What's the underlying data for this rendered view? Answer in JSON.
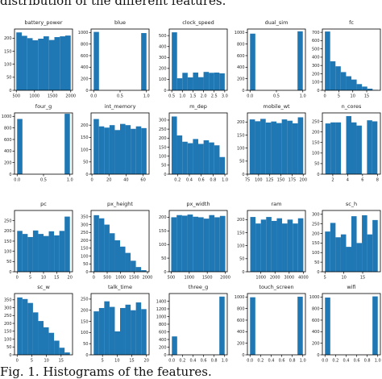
{
  "captions": {
    "top": "distribution of the different features.",
    "bottom": "Fig. 1.   Histograms of the features."
  },
  "colors": {
    "bar": "#1f77b4",
    "axis": "#000000",
    "text": "#222222"
  },
  "chart_data": [
    {
      "type": "bar",
      "title": "battery_power",
      "xticks": [
        500,
        1000,
        1500,
        2000
      ],
      "yticks": [
        0,
        50,
        100,
        150,
        200
      ],
      "xlim": [
        450,
        2050
      ],
      "ylim": [
        0,
        235
      ],
      "bins": [
        [
          500,
          650,
          222
        ],
        [
          650,
          800,
          209
        ],
        [
          800,
          950,
          200
        ],
        [
          950,
          1100,
          192
        ],
        [
          1100,
          1250,
          198
        ],
        [
          1250,
          1400,
          207
        ],
        [
          1400,
          1550,
          193
        ],
        [
          1550,
          1700,
          204
        ],
        [
          1700,
          1850,
          207
        ],
        [
          1850,
          2000,
          210
        ]
      ]
    },
    {
      "type": "bar",
      "title": "blue",
      "xticks": [
        0.0,
        0.5,
        1.0
      ],
      "yticks": [
        0,
        200,
        400,
        600,
        800,
        1000
      ],
      "xlim": [
        -0.05,
        1.05
      ],
      "ylim": [
        0,
        1060
      ],
      "bins": [
        [
          0,
          0.1,
          1010
        ],
        [
          0.9,
          1.0,
          990
        ]
      ]
    },
    {
      "type": "bar",
      "title": "clock_speed",
      "xticks": [
        0.5,
        1.0,
        1.5,
        2.0,
        2.5,
        3.0
      ],
      "yticks": [
        0,
        100,
        200,
        300,
        400,
        500
      ],
      "xlim": [
        0.38,
        3.12
      ],
      "ylim": [
        0,
        560
      ],
      "bins": [
        [
          0.5,
          0.75,
          530
        ],
        [
          0.75,
          1.0,
          110
        ],
        [
          1.0,
          1.25,
          160
        ],
        [
          1.25,
          1.5,
          118
        ],
        [
          1.5,
          1.75,
          162
        ],
        [
          1.75,
          2.0,
          120
        ],
        [
          2.0,
          2.25,
          168
        ],
        [
          2.25,
          2.5,
          160
        ],
        [
          2.5,
          2.75,
          162
        ],
        [
          2.75,
          3.0,
          155
        ]
      ]
    },
    {
      "type": "bar",
      "title": "dual_sim",
      "xticks": [
        0.0,
        0.5,
        1.0
      ],
      "yticks": [
        0,
        200,
        400,
        600,
        800,
        1000
      ],
      "xlim": [
        -0.05,
        1.05
      ],
      "ylim": [
        0,
        1060
      ],
      "bins": [
        [
          0,
          0.1,
          980
        ],
        [
          0.9,
          1.0,
          1020
        ]
      ]
    },
    {
      "type": "bar",
      "title": "fc",
      "xticks": [
        0,
        5,
        10,
        15
      ],
      "yticks": [
        0,
        100,
        200,
        300,
        400,
        500,
        600,
        700
      ],
      "xlim": [
        -0.9,
        19.9
      ],
      "ylim": [
        0,
        740
      ],
      "bins": [
        [
          0,
          1.9,
          710
        ],
        [
          1.9,
          3.8,
          350
        ],
        [
          3.8,
          5.7,
          290
        ],
        [
          5.7,
          7.6,
          220
        ],
        [
          7.6,
          9.5,
          170
        ],
        [
          9.5,
          11.4,
          130
        ],
        [
          11.4,
          13.3,
          75
        ],
        [
          13.3,
          15.2,
          45
        ],
        [
          15.2,
          17.1,
          20
        ],
        [
          17.1,
          19,
          5
        ]
      ]
    },
    {
      "type": "bar",
      "title": "four_g",
      "xticks": [
        0.0,
        0.5,
        1.0
      ],
      "yticks": [
        0,
        200,
        400,
        600,
        800,
        1000
      ],
      "xlim": [
        -0.05,
        1.05
      ],
      "ylim": [
        0,
        1060
      ],
      "bins": [
        [
          0,
          0.1,
          955
        ],
        [
          0.9,
          1.0,
          1045
        ]
      ]
    },
    {
      "type": "bar",
      "title": "int_memory",
      "xticks": [
        0,
        20,
        40,
        60
      ],
      "yticks": [
        0,
        50,
        100,
        150,
        200
      ],
      "xlim": [
        -1,
        67
      ],
      "ylim": [
        0,
        250
      ],
      "bins": [
        [
          2,
          8.2,
          225
        ],
        [
          8.2,
          14.4,
          195
        ],
        [
          14.4,
          20.6,
          190
        ],
        [
          20.6,
          26.8,
          200
        ],
        [
          26.8,
          33,
          180
        ],
        [
          33,
          39.2,
          205
        ],
        [
          39.2,
          45.4,
          200
        ],
        [
          45.4,
          51.6,
          185
        ],
        [
          51.6,
          57.8,
          195
        ],
        [
          57.8,
          64,
          188
        ]
      ]
    },
    {
      "type": "bar",
      "title": "m_dep",
      "xticks": [
        0.2,
        0.4,
        0.6,
        0.8,
        1.0
      ],
      "yticks": [
        0,
        50,
        100,
        150,
        200,
        250,
        300
      ],
      "xlim": [
        0.06,
        1.04
      ],
      "ylim": [
        0,
        340
      ],
      "bins": [
        [
          0.1,
          0.19,
          320
        ],
        [
          0.19,
          0.28,
          215
        ],
        [
          0.28,
          0.37,
          180
        ],
        [
          0.37,
          0.46,
          172
        ],
        [
          0.46,
          0.55,
          195
        ],
        [
          0.55,
          0.64,
          168
        ],
        [
          0.64,
          0.73,
          188
        ],
        [
          0.73,
          0.82,
          176
        ],
        [
          0.82,
          0.91,
          160
        ],
        [
          0.91,
          1.0,
          95
        ]
      ]
    },
    {
      "type": "bar",
      "title": "mobile_wt",
      "xticks": [
        75,
        100,
        125,
        150,
        175,
        200
      ],
      "yticks": [
        0,
        50,
        100,
        150,
        200
      ],
      "xlim": [
        75,
        205
      ],
      "ylim": [
        0,
        235
      ],
      "bins": [
        [
          80,
          92,
          210
        ],
        [
          92,
          104,
          203
        ],
        [
          104,
          116,
          212
        ],
        [
          116,
          128,
          198
        ],
        [
          128,
          140,
          202
        ],
        [
          140,
          152,
          196
        ],
        [
          152,
          164,
          210
        ],
        [
          164,
          176,
          205
        ],
        [
          176,
          188,
          195
        ],
        [
          188,
          200,
          218
        ]
      ]
    },
    {
      "type": "bar",
      "title": "n_cores",
      "xticks": [
        2,
        4,
        6,
        8
      ],
      "yticks": [
        0,
        50,
        100,
        150,
        200,
        250
      ],
      "xlim": [
        0.6,
        8.4
      ],
      "ylim": [
        0,
        290
      ],
      "bins": [
        [
          1,
          1.7,
          240
        ],
        [
          1.7,
          2.4,
          245
        ],
        [
          2.4,
          3.1,
          245
        ],
        [
          3.1,
          3.8,
          0
        ],
        [
          3.8,
          4.5,
          275
        ],
        [
          4.5,
          5.2,
          245
        ],
        [
          5.2,
          5.9,
          230
        ],
        [
          5.9,
          6.6,
          0
        ],
        [
          6.6,
          7.3,
          255
        ],
        [
          7.3,
          8,
          250
        ]
      ]
    },
    {
      "type": "bar",
      "title": "pc",
      "xticks": [
        0,
        5,
        10,
        15,
        20
      ],
      "yticks": [
        0,
        50,
        100,
        150,
        200,
        250
      ],
      "xlim": [
        -1,
        21
      ],
      "ylim": [
        0,
        300
      ],
      "bins": [
        [
          0,
          2,
          200
        ],
        [
          2,
          4,
          185
        ],
        [
          4,
          6,
          170
        ],
        [
          6,
          8,
          202
        ],
        [
          8,
          10,
          185
        ],
        [
          10,
          12,
          175
        ],
        [
          12,
          14,
          198
        ],
        [
          14,
          16,
          178
        ],
        [
          16,
          18,
          200
        ],
        [
          18,
          20,
          270
        ]
      ]
    },
    {
      "type": "bar",
      "title": "px_height",
      "xticks": [
        0,
        500,
        1000,
        1500,
        2000
      ],
      "yticks": [
        0,
        50,
        100,
        150,
        200,
        250,
        300,
        350
      ],
      "xlim": [
        -100,
        2060
      ],
      "ylim": [
        0,
        390
      ],
      "bins": [
        [
          0,
          196,
          360
        ],
        [
          196,
          392,
          340
        ],
        [
          392,
          588,
          300
        ],
        [
          588,
          784,
          245
        ],
        [
          784,
          980,
          200
        ],
        [
          980,
          1176,
          160
        ],
        [
          1176,
          1372,
          120
        ],
        [
          1372,
          1568,
          70
        ],
        [
          1568,
          1764,
          30
        ],
        [
          1764,
          1960,
          10
        ]
      ]
    },
    {
      "type": "bar",
      "title": "px_width",
      "xticks": [
        500,
        1000,
        1500,
        2000
      ],
      "yticks": [
        0,
        50,
        100,
        150,
        200
      ],
      "xlim": [
        445,
        2055
      ],
      "ylim": [
        0,
        225
      ],
      "bins": [
        [
          500,
          650,
          200
        ],
        [
          650,
          800,
          208
        ],
        [
          800,
          950,
          206
        ],
        [
          950,
          1100,
          210
        ],
        [
          1100,
          1250,
          202
        ],
        [
          1250,
          1400,
          200
        ],
        [
          1400,
          1550,
          195
        ],
        [
          1550,
          1700,
          208
        ],
        [
          1700,
          1850,
          200
        ],
        [
          1850,
          2000,
          205
        ]
      ]
    },
    {
      "type": "bar",
      "title": "ram",
      "xticks": [
        1000,
        2000,
        3000,
        4000
      ],
      "yticks": [
        0,
        50,
        100,
        150,
        200
      ],
      "xlim": [
        50,
        4150
      ],
      "ylim": [
        0,
        235
      ],
      "bins": [
        [
          250,
          625,
          210
        ],
        [
          625,
          1000,
          185
        ],
        [
          1000,
          1375,
          200
        ],
        [
          1375,
          1750,
          210
        ],
        [
          1750,
          2125,
          195
        ],
        [
          2125,
          2500,
          205
        ],
        [
          2500,
          2875,
          185
        ],
        [
          2875,
          3250,
          200
        ],
        [
          3250,
          3625,
          185
        ],
        [
          3625,
          4000,
          205
        ]
      ]
    },
    {
      "type": "bar",
      "title": "sc_h",
      "xticks": [
        5,
        10,
        15
      ],
      "yticks": [
        0,
        50,
        100,
        150,
        200,
        250,
        300
      ],
      "xlim": [
        4.3,
        19.7
      ],
      "ylim": [
        0,
        320
      ],
      "bins": [
        [
          5,
          6.4,
          210
        ],
        [
          6.4,
          7.8,
          255
        ],
        [
          7.8,
          9.2,
          180
        ],
        [
          9.2,
          10.6,
          195
        ],
        [
          10.6,
          12,
          130
        ],
        [
          12,
          13.4,
          290
        ],
        [
          13.4,
          14.8,
          150
        ],
        [
          14.8,
          16.2,
          295
        ],
        [
          16.2,
          17.6,
          195
        ],
        [
          17.6,
          19,
          270
        ]
      ]
    },
    {
      "type": "bar",
      "title": "sc_w",
      "xticks": [
        0,
        5,
        10,
        15
      ],
      "yticks": [
        0,
        50,
        100,
        150,
        200,
        250,
        300,
        350
      ],
      "xlim": [
        -0.9,
        18.9
      ],
      "ylim": [
        0,
        390
      ],
      "bins": [
        [
          0,
          1.8,
          365
        ],
        [
          1.8,
          3.6,
          355
        ],
        [
          3.6,
          5.4,
          330
        ],
        [
          5.4,
          7.2,
          270
        ],
        [
          7.2,
          9,
          215
        ],
        [
          9,
          10.8,
          175
        ],
        [
          10.8,
          12.6,
          140
        ],
        [
          12.6,
          14.4,
          90
        ],
        [
          14.4,
          16.2,
          45
        ],
        [
          16.2,
          18,
          15
        ]
      ]
    },
    {
      "type": "bar",
      "title": "talk_time",
      "xticks": [
        5,
        10,
        15,
        20
      ],
      "yticks": [
        0,
        50,
        100,
        150,
        200,
        250
      ],
      "xlim": [
        1.1,
        20.9
      ],
      "ylim": [
        0,
        275
      ],
      "bins": [
        [
          2,
          3.8,
          195
        ],
        [
          3.8,
          5.6,
          210
        ],
        [
          5.6,
          7.4,
          240
        ],
        [
          7.4,
          9.2,
          215
        ],
        [
          9.2,
          11,
          105
        ],
        [
          11,
          12.8,
          210
        ],
        [
          12.8,
          14.6,
          225
        ],
        [
          14.6,
          16.4,
          200
        ],
        [
          16.4,
          18.2,
          235
        ],
        [
          18.2,
          20,
          205
        ]
      ]
    },
    {
      "type": "bar",
      "title": "three_g",
      "xticks": [
        0.0,
        0.2,
        0.4,
        0.6,
        0.8,
        1.0
      ],
      "yticks": [
        0,
        200,
        400,
        600,
        800,
        1000,
        1200,
        1400
      ],
      "xlim": [
        -0.05,
        1.05
      ],
      "ylim": [
        0,
        1600
      ],
      "bins": [
        [
          0,
          0.1,
          480
        ],
        [
          0.9,
          1.0,
          1520
        ]
      ]
    },
    {
      "type": "bar",
      "title": "touch_screen",
      "xticks": [
        0.0,
        0.2,
        0.4,
        0.6,
        0.8,
        1.0
      ],
      "yticks": [
        0,
        200,
        400,
        600,
        800,
        1000
      ],
      "xlim": [
        -0.05,
        1.05
      ],
      "ylim": [
        0,
        1060
      ],
      "bins": [
        [
          0,
          0.1,
          995
        ],
        [
          0.9,
          1.0,
          1005
        ]
      ]
    },
    {
      "type": "bar",
      "title": "wifi",
      "xticks": [
        0.0,
        0.2,
        0.4,
        0.6,
        0.8,
        1.0
      ],
      "yticks": [
        0,
        200,
        400,
        600,
        800,
        1000
      ],
      "xlim": [
        -0.05,
        1.05
      ],
      "ylim": [
        0,
        1060
      ],
      "bins": [
        [
          0,
          0.1,
          990
        ],
        [
          0.9,
          1.0,
          1010
        ]
      ]
    }
  ]
}
